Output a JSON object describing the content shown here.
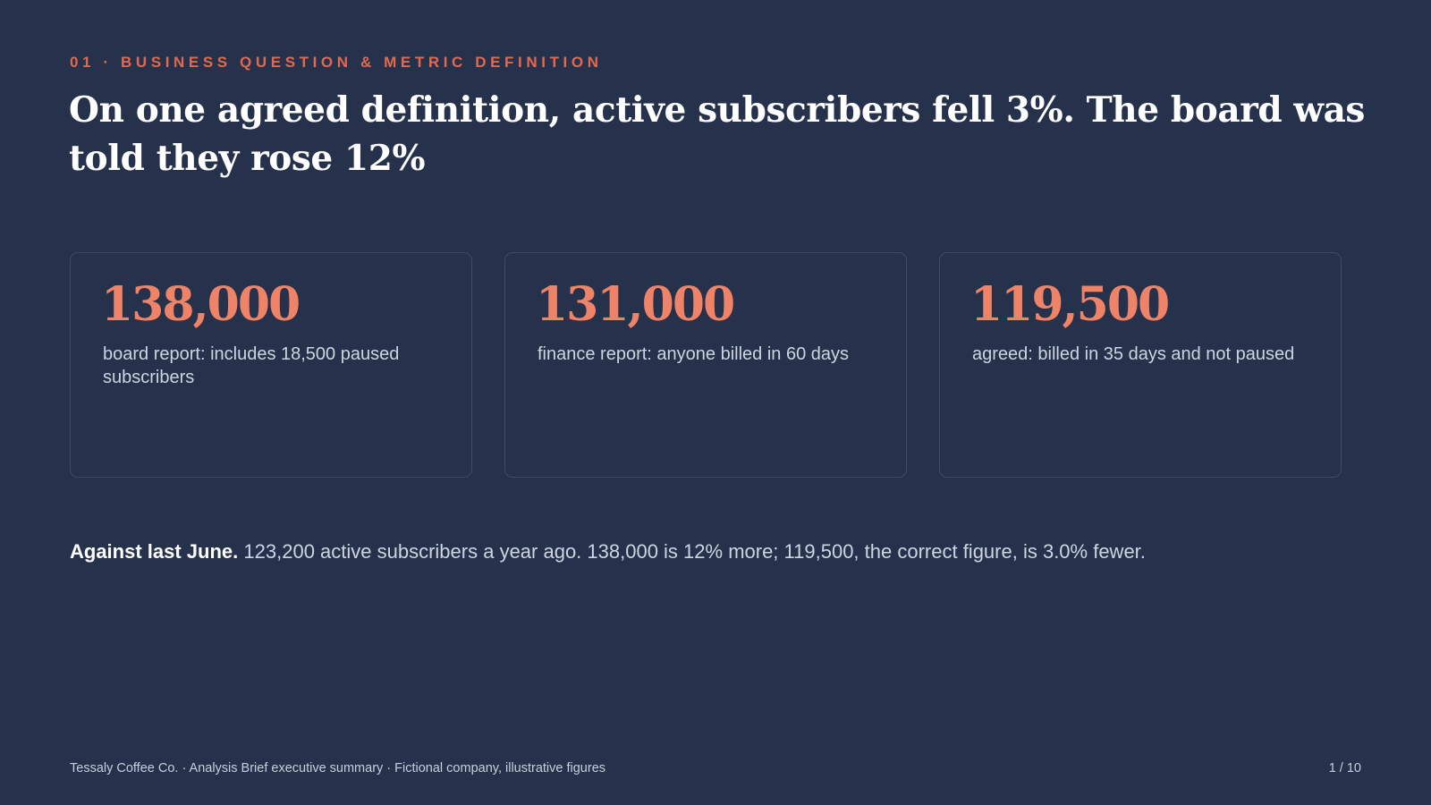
{
  "slide": {
    "eyebrow": "01 · BUSINESS QUESTION & METRIC DEFINITION",
    "title": "On one agreed definition, active subscribers fell 3%. The board was told they rose 12%",
    "cards": [
      {
        "value": "138,000",
        "description": "board report: includes 18,500 paused subscribers"
      },
      {
        "value": "131,000",
        "description": "finance report: anyone billed in 60 days"
      },
      {
        "value": "119,500",
        "description": "agreed: billed in 35 days and not paused"
      }
    ],
    "note": {
      "lead": "Against last June.",
      "text": "123,200 active subscribers a year ago. 138,000 is 12% more; 119,500, the correct figure, is 3.0% fewer."
    },
    "footer": {
      "left": "Tessaly Coffee Co. · Analysis Brief executive summary · Fictional company, illustrative figures",
      "page": "1 / 10"
    }
  },
  "colors": {
    "background": "#26324b",
    "accent": "#e2694f",
    "kpi_value": "#ee8368",
    "card_border": "#3d4b66",
    "body_text": "#cdd5e2",
    "heading": "#ffffff"
  }
}
